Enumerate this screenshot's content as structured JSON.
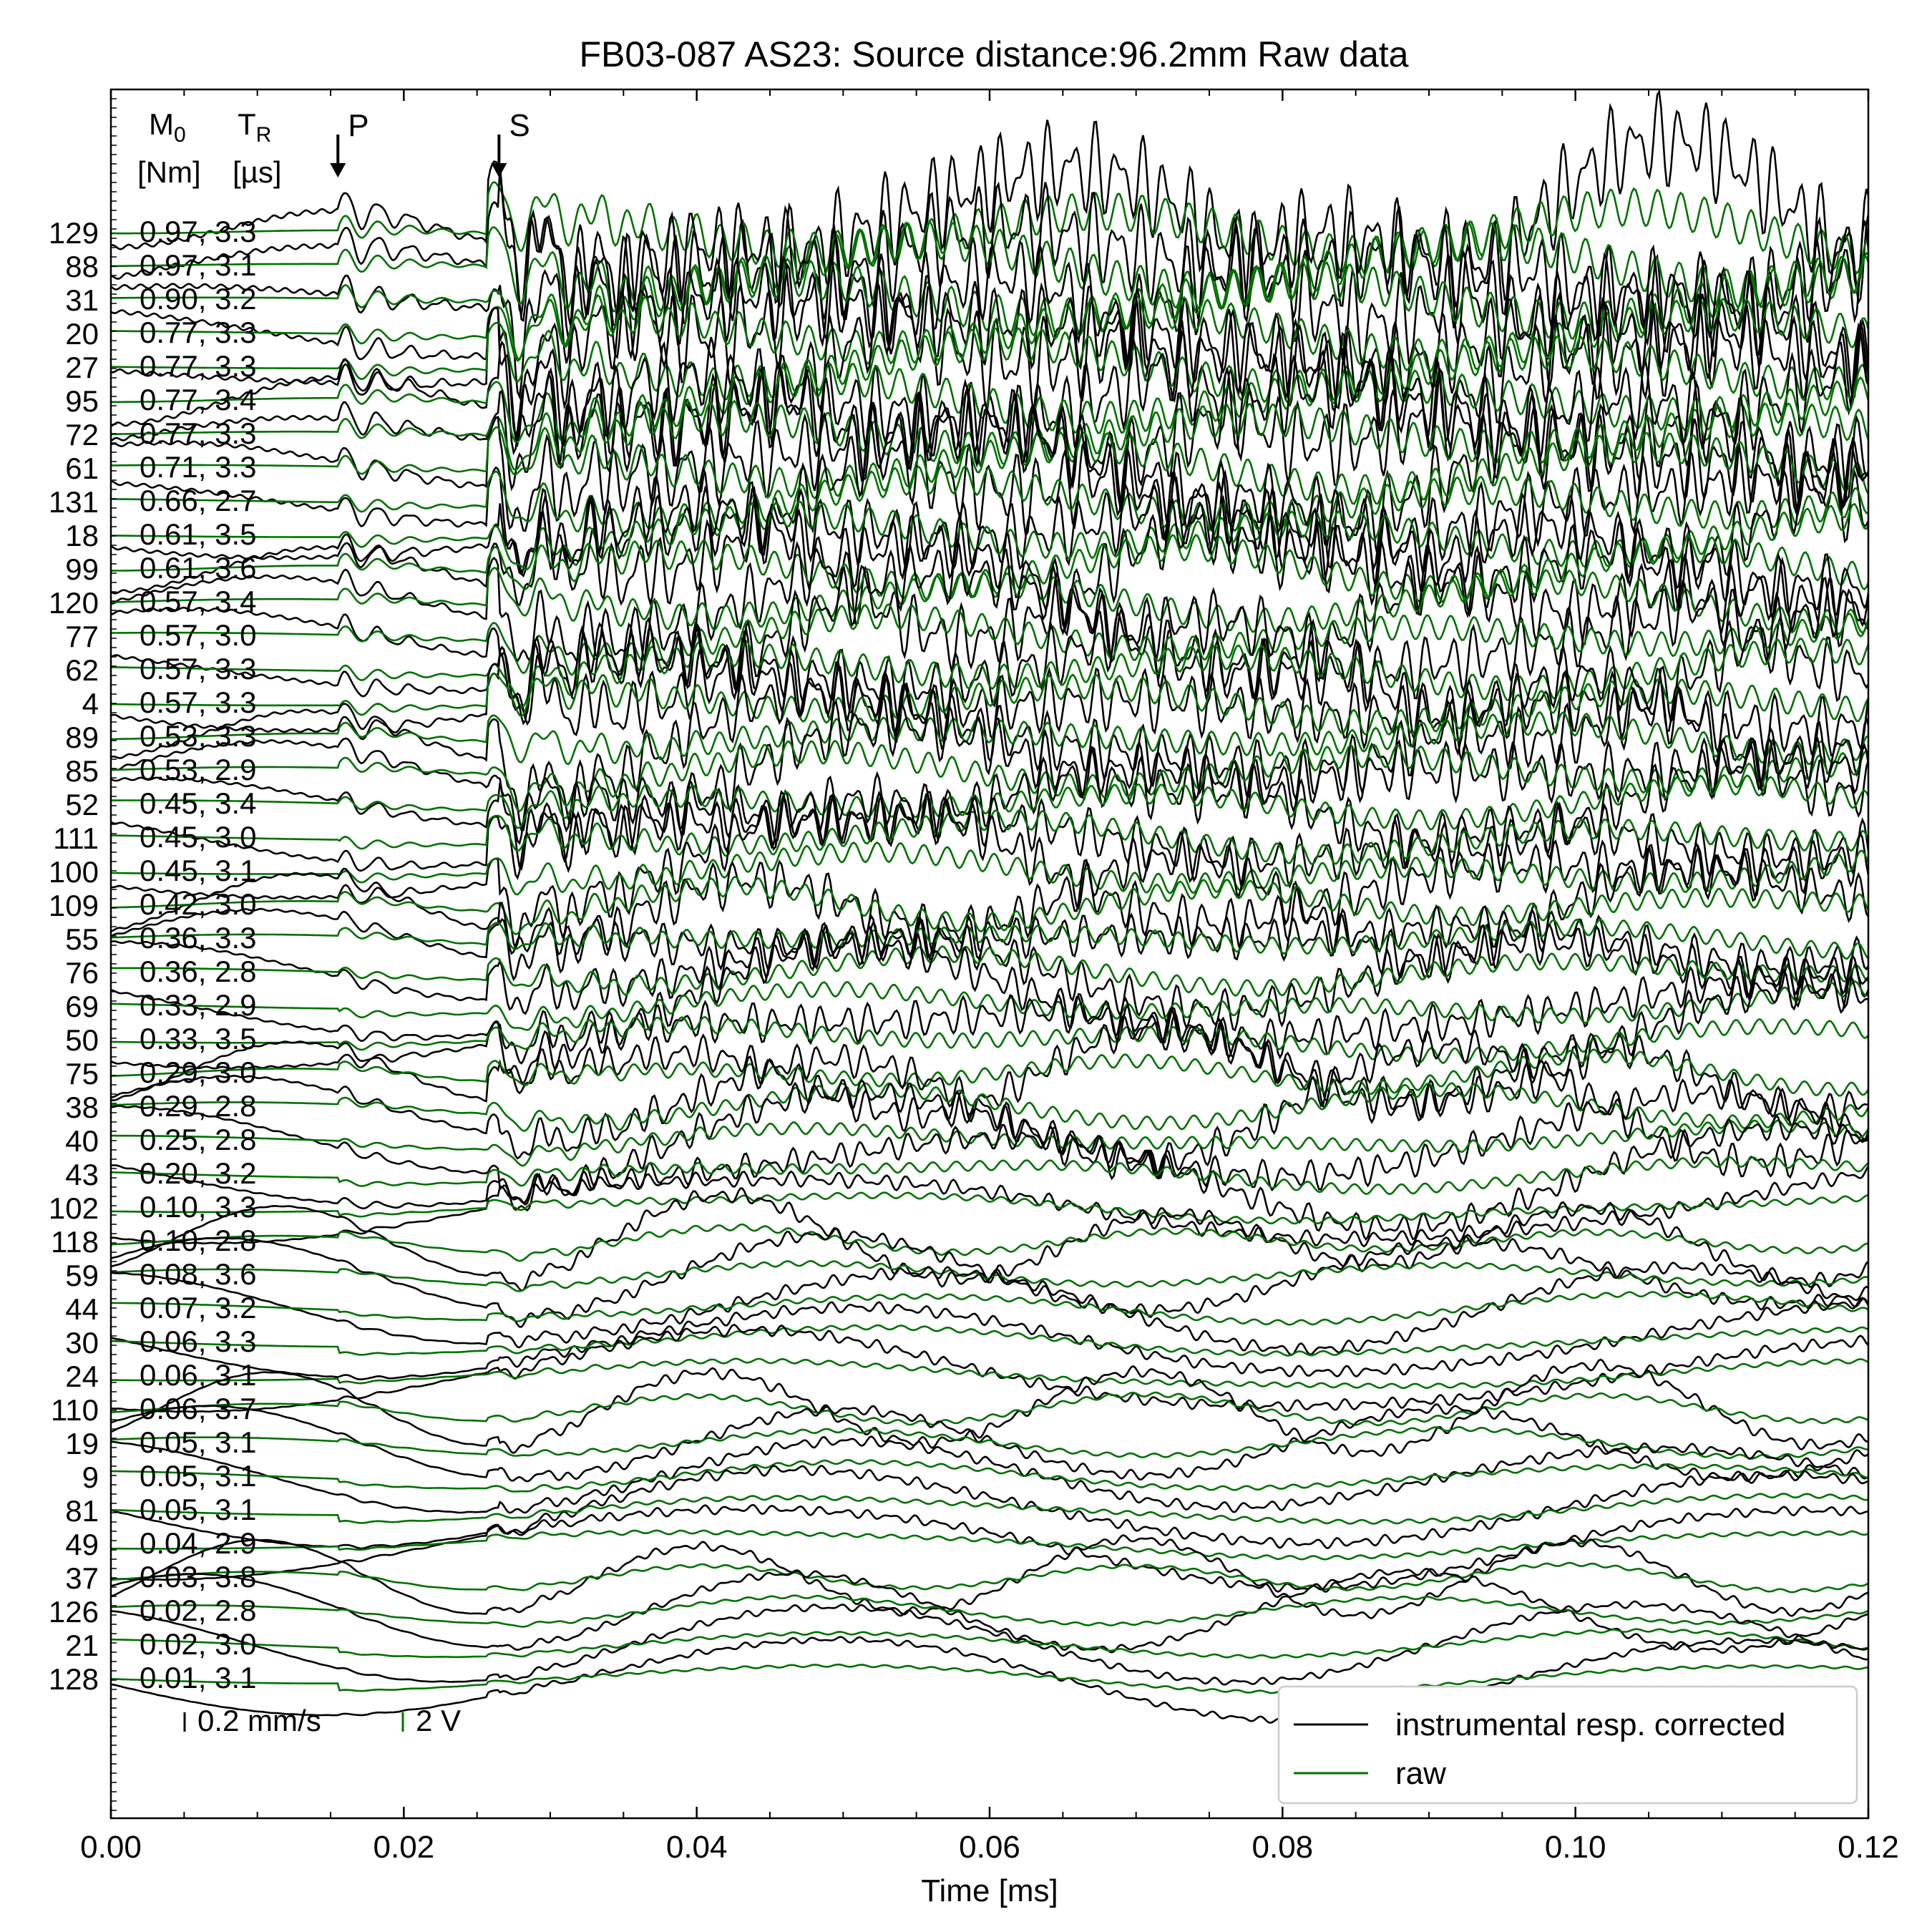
{
  "chart_data": {
    "type": "line",
    "title": "FB03-087 AS23: Source distance:96.2mm Raw data",
    "xlabel": "Time [ms]",
    "ylabel": "",
    "xlim": [
      0.0,
      0.12
    ],
    "x_ticks": [
      "0.00",
      "0.02",
      "0.04",
      "0.06",
      "0.08",
      "0.10",
      "0.12"
    ],
    "grid": false,
    "legend_position": "bottom-right",
    "legend": [
      {
        "label": "instrumental resp. corrected",
        "color": "#000000"
      },
      {
        "label": "raw",
        "color": "#007000"
      }
    ],
    "column_headers": {
      "m0": "M",
      "m0_sub": "0",
      "tr": "T",
      "tr_sub": "R",
      "m0_unit": "[Nm]",
      "tr_unit": "[µs]"
    },
    "phase_markers": [
      {
        "label": "P",
        "time": 0.0155
      },
      {
        "label": "S",
        "time": 0.0265
      }
    ],
    "scale_bars": [
      {
        "label": "0.2 mm/s",
        "color": "#000000"
      },
      {
        "label": "2 V",
        "color": "#007000"
      }
    ],
    "traces": [
      {
        "id": "129",
        "label": "0.97,  3.3",
        "m0": 0.97
      },
      {
        "id": "88",
        "label": "0.97,  3.1",
        "m0": 0.97
      },
      {
        "id": "31",
        "label": "0.90,  3.2",
        "m0": 0.9
      },
      {
        "id": "20",
        "label": "0.77,  3.3",
        "m0": 0.77
      },
      {
        "id": "27",
        "label": "0.77,  3.3",
        "m0": 0.77
      },
      {
        "id": "95",
        "label": "0.77,  3.4",
        "m0": 0.77
      },
      {
        "id": "72",
        "label": "0.77,  3.3",
        "m0": 0.77
      },
      {
        "id": "61",
        "label": "0.71,  3.3",
        "m0": 0.71
      },
      {
        "id": "131",
        "label": "0.66,  2.7",
        "m0": 0.66
      },
      {
        "id": "18",
        "label": "0.61,  3.5",
        "m0": 0.61
      },
      {
        "id": "99",
        "label": "0.61,  3.6",
        "m0": 0.61
      },
      {
        "id": "120",
        "label": "0.57,  3.4",
        "m0": 0.57
      },
      {
        "id": "77",
        "label": "0.57,  3.0",
        "m0": 0.57
      },
      {
        "id": "62",
        "label": "0.57,  3.3",
        "m0": 0.57
      },
      {
        "id": "4",
        "label": "0.57,  3.3",
        "m0": 0.57
      },
      {
        "id": "89",
        "label": "0.53,  3.3",
        "m0": 0.53
      },
      {
        "id": "85",
        "label": "0.53,  2.9",
        "m0": 0.53
      },
      {
        "id": "52",
        "label": "0.45,  3.4",
        "m0": 0.45
      },
      {
        "id": "111",
        "label": "0.45,  3.0",
        "m0": 0.45
      },
      {
        "id": "100",
        "label": "0.45,  3.1",
        "m0": 0.45
      },
      {
        "id": "109",
        "label": "0.42,  3.0",
        "m0": 0.42
      },
      {
        "id": "55",
        "label": "0.36,  3.3",
        "m0": 0.36
      },
      {
        "id": "76",
        "label": "0.36,  2.8",
        "m0": 0.36
      },
      {
        "id": "69",
        "label": "0.33,  2.9",
        "m0": 0.33
      },
      {
        "id": "50",
        "label": "0.33,  3.5",
        "m0": 0.33
      },
      {
        "id": "75",
        "label": "0.29,  3.0",
        "m0": 0.29
      },
      {
        "id": "38",
        "label": "0.29,  2.8",
        "m0": 0.29
      },
      {
        "id": "40",
        "label": "0.25,  2.8",
        "m0": 0.25
      },
      {
        "id": "43",
        "label": "0.20,  3.2",
        "m0": 0.2
      },
      {
        "id": "102",
        "label": "0.10,  3.3",
        "m0": 0.1
      },
      {
        "id": "118",
        "label": "0.10,  2.8",
        "m0": 0.1
      },
      {
        "id": "59",
        "label": "0.08,  3.6",
        "m0": 0.08
      },
      {
        "id": "44",
        "label": "0.07,  3.2",
        "m0": 0.07
      },
      {
        "id": "30",
        "label": "0.06,  3.3",
        "m0": 0.06
      },
      {
        "id": "24",
        "label": "0.06,  3.1",
        "m0": 0.06
      },
      {
        "id": "110",
        "label": "0.06,  3.7",
        "m0": 0.06
      },
      {
        "id": "19",
        "label": "0.05,  3.1",
        "m0": 0.05
      },
      {
        "id": "9",
        "label": "0.05,  3.1",
        "m0": 0.05
      },
      {
        "id": "81",
        "label": "0.05,  3.1",
        "m0": 0.05
      },
      {
        "id": "49",
        "label": "0.04,  2.9",
        "m0": 0.04
      },
      {
        "id": "37",
        "label": "0.03,  3.8",
        "m0": 0.03
      },
      {
        "id": "126",
        "label": "0.02,  2.8",
        "m0": 0.02
      },
      {
        "id": "21",
        "label": "0.02,  3.0",
        "m0": 0.02
      },
      {
        "id": "128",
        "label": "0.01,  3.1",
        "m0": 0.01
      }
    ]
  }
}
